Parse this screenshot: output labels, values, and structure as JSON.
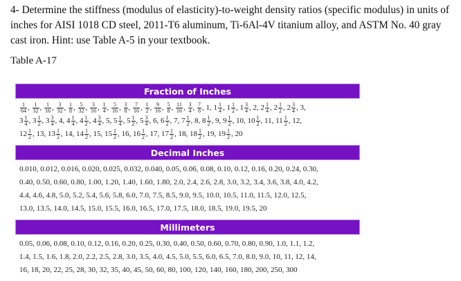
{
  "question": {
    "text": "4- Determine the stiffness (modulus of elasticity)-to-weight density ratios (specific modulus) in units of inches for AISI 1018 CD steel, 2011-T6 aluminum, Ti-6Al-4V titanium alloy, and ASTM No. 40 gray cast iron. Hint: use Table A-5 in your textbook."
  },
  "table": {
    "caption": "Table A-17",
    "accent_color": "#7612c4",
    "sections": [
      {
        "title": "Fraction of Inches",
        "rows": [
          [
            "1/64",
            "1/32",
            "1/16",
            "3/32",
            "1/8",
            "5/32",
            "3/16",
            "1/4",
            "5/16",
            "3/8",
            "7/16",
            "1/2",
            "9/16",
            "5/8",
            "11/16",
            "3/4",
            "7/8",
            "1",
            "1 1/4",
            "1 1/2",
            "1 3/4",
            "2",
            "2 1/4",
            "2 1/2",
            "2 3/4",
            "3"
          ],
          [
            "3 1/4",
            "3 1/2",
            "3 3/4",
            "4",
            "4 1/4",
            "4 1/2",
            "4 3/4",
            "5",
            "5 1/4",
            "5 1/2",
            "5 3/4",
            "6",
            "6 1/2",
            "7",
            "7 1/2",
            "8",
            "8 1/2",
            "9",
            "9 1/2",
            "10",
            "10 1/2",
            "11",
            "11 1/2",
            "12"
          ],
          [
            "12 1/2",
            "13",
            "13 1/2",
            "14",
            "14 1/2",
            "15",
            "15 1/2",
            "16",
            "16 1/2",
            "17",
            "17 1/2",
            "18",
            "18 1/2",
            "19",
            "19 1/2",
            "20"
          ]
        ]
      },
      {
        "title": "Decimal Inches",
        "rows": [
          "0.010, 0.012, 0.016, 0.020, 0.025, 0.032, 0.040, 0.05, 0.06, 0.08, 0.10, 0.12, 0.16, 0.20, 0.24, 0.30,",
          "0.40, 0.50, 0.60, 0.80, 1.00, 1.20, 1.40, 1.60, 1.80, 2.0, 2.4, 2.6, 2.8, 3.0, 3.2, 3.4, 3.6, 3.8, 4.0, 4.2,",
          "4.4, 4.6, 4.8, 5.0, 5.2, 5.4, 5.6, 5.8, 6.0, 7.0, 7.5, 8.5, 9.0, 9.5, 10.0, 10.5, 11.0, 11.5, 12.0, 12.5,",
          "13.0, 13.5, 14.0, 14.5, 15.0, 15.5, 16.0, 16.5, 17.0, 17.5, 18.0, 18.5, 19.0, 19.5, 20"
        ]
      },
      {
        "title": "Millimeters",
        "rows": [
          "0.05, 0.06, 0.08, 0.10, 0.12, 0.16, 0.20, 0.25, 0.30, 0.40, 0.50, 0.60, 0.70, 0.80, 0.90, 1.0, 1.1, 1.2,",
          "1.4, 1.5, 1.6, 1.8, 2.0, 2.2, 2.5, 2.8, 3.0, 3.5, 4.0, 4.5, 5.0, 5.5, 6.0, 6.5, 7.0, 8.0, 9.0, 10, 11, 12, 14,",
          "16, 18, 20, 22, 25, 28, 30, 32, 35, 40, 45, 50, 60, 80, 100, 120, 140, 160, 180, 200, 250, 300"
        ]
      }
    ]
  }
}
